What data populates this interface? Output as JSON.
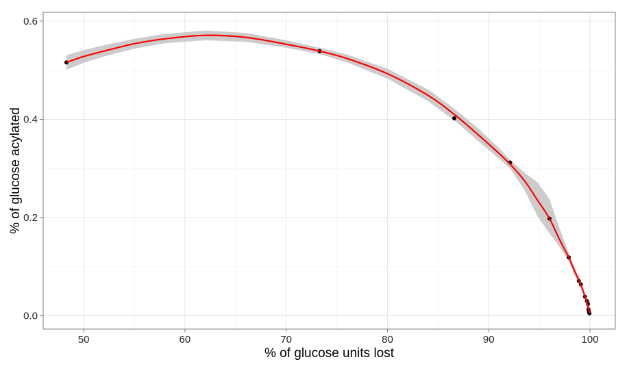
{
  "chart_data": {
    "type": "scatter",
    "title": "",
    "xlabel": "% of glucose units lost",
    "ylabel": "% of glucose acylated",
    "xlim": [
      46,
      102.5
    ],
    "ylim": [
      -0.027,
      0.618
    ],
    "x_ticks": [
      50,
      60,
      70,
      80,
      90,
      100
    ],
    "x_tick_labels": [
      "50",
      "60",
      "70",
      "80",
      "90",
      "100"
    ],
    "y_ticks": [
      0.0,
      0.2,
      0.4,
      0.6
    ],
    "y_tick_labels": [
      "0.0",
      "0.2",
      "0.4",
      "0.6"
    ],
    "grid": true,
    "series": [
      {
        "type": "scatter",
        "color": "#000000",
        "points": [
          {
            "x": 48.3,
            "y": 0.516
          },
          {
            "x": 73.3,
            "y": 0.539
          },
          {
            "x": 86.6,
            "y": 0.402
          },
          {
            "x": 92.1,
            "y": 0.312
          },
          {
            "x": 96.0,
            "y": 0.198
          },
          {
            "x": 97.9,
            "y": 0.119
          },
          {
            "x": 98.9,
            "y": 0.071
          },
          {
            "x": 99.1,
            "y": 0.064
          },
          {
            "x": 99.5,
            "y": 0.039
          },
          {
            "x": 99.7,
            "y": 0.03
          },
          {
            "x": 99.8,
            "y": 0.024
          },
          {
            "x": 99.85,
            "y": 0.013
          },
          {
            "x": 99.9,
            "y": 0.008
          },
          {
            "x": 99.95,
            "y": 0.005
          }
        ]
      },
      {
        "type": "smooth",
        "color": "#ff0000",
        "band_color": "#cccccc",
        "points": [
          {
            "x": 48.3,
            "y": 0.516,
            "lo": 0.501,
            "hi": 0.531
          },
          {
            "x": 50,
            "y": 0.528,
            "lo": 0.515,
            "hi": 0.541
          },
          {
            "x": 52,
            "y": 0.539,
            "lo": 0.528,
            "hi": 0.551
          },
          {
            "x": 55,
            "y": 0.554,
            "lo": 0.544,
            "hi": 0.564
          },
          {
            "x": 58,
            "y": 0.564,
            "lo": 0.555,
            "hi": 0.574
          },
          {
            "x": 62,
            "y": 0.571,
            "lo": 0.561,
            "hi": 0.581
          },
          {
            "x": 66,
            "y": 0.567,
            "lo": 0.558,
            "hi": 0.576
          },
          {
            "x": 70,
            "y": 0.553,
            "lo": 0.546,
            "hi": 0.561
          },
          {
            "x": 73.3,
            "y": 0.539,
            "lo": 0.533,
            "hi": 0.546
          },
          {
            "x": 76,
            "y": 0.524,
            "lo": 0.516,
            "hi": 0.532
          },
          {
            "x": 80,
            "y": 0.493,
            "lo": 0.483,
            "hi": 0.503
          },
          {
            "x": 84,
            "y": 0.449,
            "lo": 0.437,
            "hi": 0.461
          },
          {
            "x": 86.6,
            "y": 0.41,
            "lo": 0.398,
            "hi": 0.422
          },
          {
            "x": 89,
            "y": 0.368,
            "lo": 0.355,
            "hi": 0.381
          },
          {
            "x": 91,
            "y": 0.331,
            "lo": 0.32,
            "hi": 0.342
          },
          {
            "x": 92.1,
            "y": 0.309,
            "lo": 0.3,
            "hi": 0.318
          },
          {
            "x": 93.5,
            "y": 0.276,
            "lo": 0.257,
            "hi": 0.292
          },
          {
            "x": 94.8,
            "y": 0.236,
            "lo": 0.203,
            "hi": 0.272
          },
          {
            "x": 96.0,
            "y": 0.198,
            "lo": 0.168,
            "hi": 0.238
          },
          {
            "x": 97.0,
            "y": 0.155,
            "lo": 0.14,
            "hi": 0.178
          },
          {
            "x": 97.9,
            "y": 0.119,
            "lo": 0.112,
            "hi": 0.128
          },
          {
            "x": 98.5,
            "y": 0.09,
            "lo": 0.082,
            "hi": 0.097
          },
          {
            "x": 99.0,
            "y": 0.068,
            "lo": 0.062,
            "hi": 0.074
          },
          {
            "x": 99.5,
            "y": 0.04,
            "lo": 0.034,
            "hi": 0.045
          },
          {
            "x": 99.8,
            "y": 0.018,
            "lo": 0.012,
            "hi": 0.025
          },
          {
            "x": 100.0,
            "y": 0.005,
            "lo": -0.002,
            "hi": 0.012
          }
        ]
      }
    ]
  }
}
